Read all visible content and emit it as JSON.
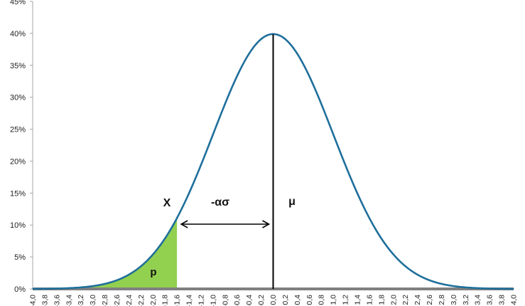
{
  "chart_data": {
    "type": "area",
    "title": "",
    "xlabel": "",
    "ylabel": "",
    "xlim": [
      -4.0,
      4.0
    ],
    "ylim": [
      0,
      45
    ],
    "y_unit": "%",
    "grid": false,
    "series": [
      {
        "x": [
          -4.0,
          -3.8,
          -3.6,
          -3.4,
          -3.2,
          -3.0,
          -2.8,
          -2.6,
          -2.4,
          -2.2,
          -2.0,
          -1.8,
          -1.6,
          -1.4,
          -1.2,
          -1.0,
          -0.8,
          -0.6,
          -0.4,
          -0.2,
          0.0,
          0.2,
          0.4,
          0.6,
          0.8,
          1.0,
          1.2,
          1.4,
          1.6,
          1.8,
          2.0,
          2.2,
          2.4,
          2.6,
          2.8,
          3.0,
          3.2,
          3.4,
          3.6,
          3.8,
          4.0
        ],
        "y": [
          0.01,
          0.03,
          0.06,
          0.12,
          0.24,
          0.44,
          0.79,
          1.36,
          2.24,
          3.55,
          5.4,
          7.9,
          11.09,
          14.97,
          19.42,
          24.2,
          28.97,
          33.32,
          36.83,
          39.1,
          39.89,
          39.1,
          36.83,
          33.32,
          28.97,
          24.2,
          19.42,
          14.97,
          11.09,
          7.9,
          5.4,
          3.55,
          2.24,
          1.36,
          0.79,
          0.44,
          0.24,
          0.12,
          0.06,
          0.03,
          0.01
        ],
        "color": "#1f6f9b"
      }
    ],
    "shaded_region": {
      "x_from": -4.0,
      "x_to": -1.6,
      "color": "#92d050",
      "label": "p"
    },
    "mean_line_x": 0.0,
    "x_point": -1.6,
    "annotations": {
      "x_label": "X",
      "distance_label": "-ασ",
      "mean_label": "μ",
      "area_label": "p"
    },
    "y_ticks": [
      "0%",
      "5%",
      "10%",
      "15%",
      "20%",
      "25%",
      "30%",
      "35%",
      "40%",
      "45%"
    ],
    "x_ticks": [
      "-4,0",
      "-3,8",
      "-3,6",
      "-3,4",
      "-3,2",
      "-3,0",
      "-2,8",
      "-2,6",
      "-2,4",
      "-2,2",
      "-2,0",
      "-1,8",
      "-1,6",
      "-1,4",
      "-1,2",
      "-1,0",
      "-0,8",
      "-0,6",
      "-0,4",
      "-0,2",
      "0,0",
      "0,2",
      "0,4",
      "0,6",
      "0,8",
      "1,0",
      "1,2",
      "1,4",
      "1,6",
      "1,8",
      "2,0",
      "2,2",
      "2,4",
      "2,6",
      "2,8",
      "3,0",
      "3,2",
      "3,4",
      "3,6",
      "3,8",
      "4,0"
    ],
    "y_tick_values": [
      0,
      5,
      10,
      15,
      20,
      25,
      30,
      35,
      40,
      45
    ],
    "colors": {
      "axis": "#808080",
      "curve": "#1f6f9b",
      "fill": "#92d050",
      "mean_line": "#000000"
    }
  }
}
